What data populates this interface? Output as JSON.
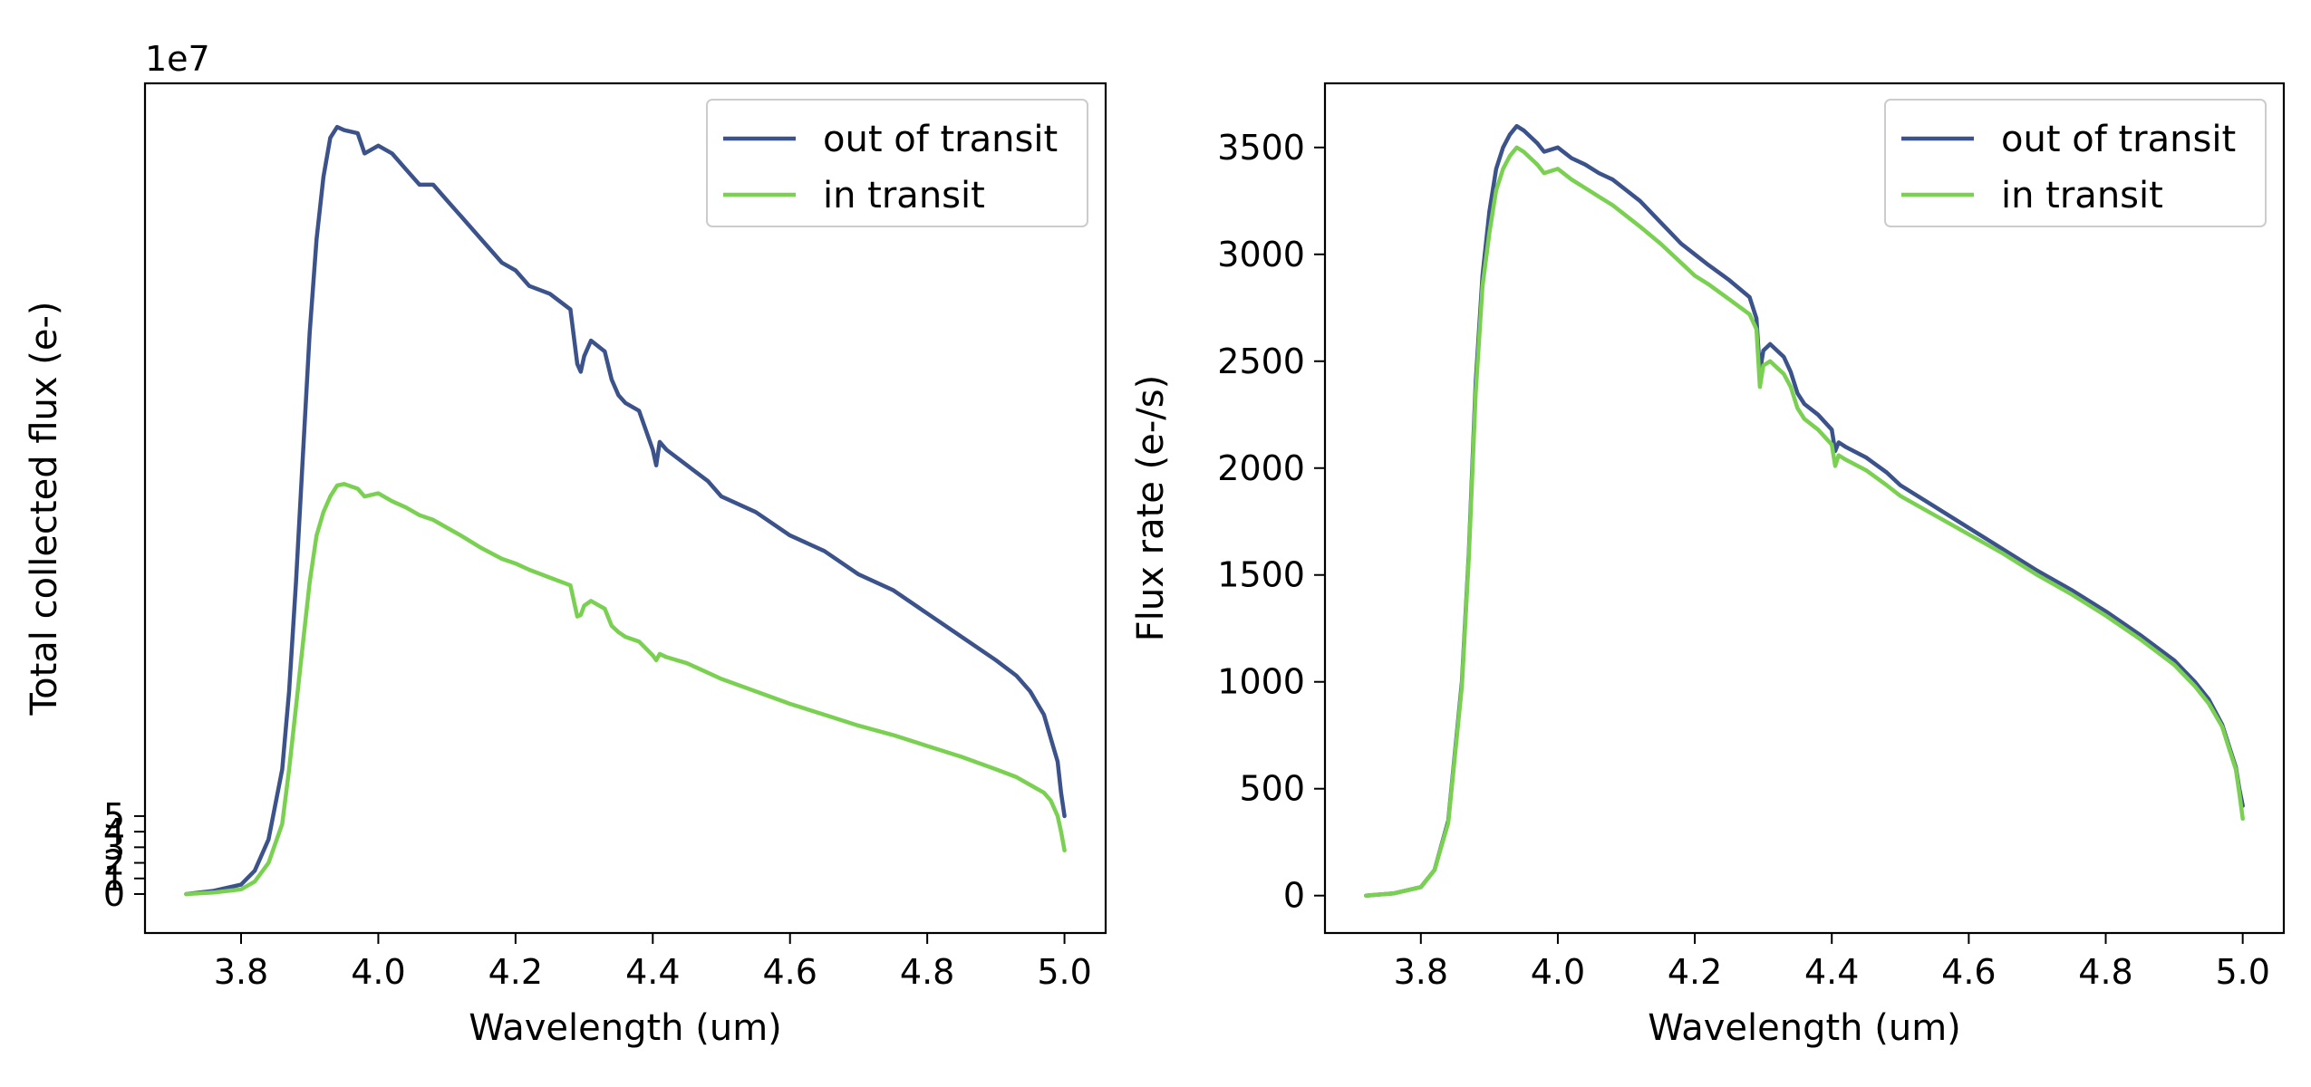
{
  "chart_data": [
    {
      "type": "line",
      "title": "",
      "xlabel": "Wavelength (um)",
      "ylabel": "Total collected flux (e-)",
      "y_offset_label": "1e7",
      "xlim": [
        3.66,
        5.06
      ],
      "ylim": [
        -2.5,
        52.0
      ],
      "y_scale": 10000000,
      "x_ticks": [
        3.8,
        4.0,
        4.2,
        4.4,
        4.6,
        4.8,
        5.0
      ],
      "x_tick_labels": [
        "3.8",
        "4.0",
        "4.2",
        "4.4",
        "4.6",
        "4.8",
        "5.0"
      ],
      "y_ticks": [
        0,
        1,
        2,
        3,
        4,
        5
      ],
      "y_tick_labels": [
        "0",
        "1",
        "2",
        "3",
        "4",
        "5"
      ],
      "legend_position": "top-right",
      "series": [
        {
          "name": "out of transit",
          "color": "#3b528b",
          "x": [
            3.72,
            3.76,
            3.8,
            3.82,
            3.84,
            3.86,
            3.87,
            3.88,
            3.89,
            3.9,
            3.91,
            3.92,
            3.93,
            3.94,
            3.95,
            3.97,
            3.98,
            4.0,
            4.02,
            4.04,
            4.06,
            4.08,
            4.1,
            4.12,
            4.15,
            4.18,
            4.2,
            4.22,
            4.25,
            4.28,
            4.29,
            4.295,
            4.3,
            4.31,
            4.33,
            4.34,
            4.35,
            4.36,
            4.38,
            4.4,
            4.405,
            4.41,
            4.42,
            4.45,
            4.48,
            4.5,
            4.55,
            4.6,
            4.65,
            4.7,
            4.75,
            4.8,
            4.85,
            4.9,
            4.93,
            4.95,
            4.97,
            4.98,
            4.99,
            4.995,
            5.0
          ],
          "y": [
            0.0,
            0.2,
            0.6,
            1.5,
            3.5,
            8.0,
            13.0,
            20.0,
            28.0,
            36.0,
            42.0,
            46.0,
            48.5,
            49.2,
            49.0,
            48.8,
            47.5,
            48.0,
            47.5,
            46.5,
            45.5,
            45.5,
            44.5,
            43.5,
            42.0,
            40.5,
            40.0,
            39.0,
            38.5,
            37.5,
            34.0,
            33.5,
            34.5,
            35.5,
            34.8,
            33.0,
            32.0,
            31.5,
            31.0,
            28.5,
            27.5,
            29.0,
            28.5,
            27.5,
            26.5,
            25.5,
            24.5,
            23.0,
            22.0,
            20.5,
            19.5,
            18.0,
            16.5,
            15.0,
            14.0,
            13.0,
            11.5,
            10.0,
            8.5,
            6.5,
            5.0
          ]
        },
        {
          "name": "in transit",
          "color": "#7ad151",
          "x": [
            3.72,
            3.76,
            3.8,
            3.82,
            3.84,
            3.86,
            3.87,
            3.88,
            3.89,
            3.9,
            3.91,
            3.92,
            3.93,
            3.94,
            3.95,
            3.97,
            3.98,
            4.0,
            4.02,
            4.04,
            4.06,
            4.08,
            4.1,
            4.12,
            4.15,
            4.18,
            4.2,
            4.22,
            4.25,
            4.28,
            4.29,
            4.295,
            4.3,
            4.31,
            4.33,
            4.34,
            4.35,
            4.36,
            4.38,
            4.4,
            4.405,
            4.41,
            4.42,
            4.45,
            4.48,
            4.5,
            4.55,
            4.6,
            4.65,
            4.7,
            4.75,
            4.8,
            4.85,
            4.9,
            4.93,
            4.95,
            4.97,
            4.98,
            4.99,
            4.995,
            5.0
          ],
          "y": [
            0.0,
            0.1,
            0.3,
            0.8,
            2.0,
            4.5,
            8.0,
            12.0,
            16.0,
            20.0,
            23.0,
            24.5,
            25.5,
            26.2,
            26.3,
            26.0,
            25.5,
            25.7,
            25.2,
            24.8,
            24.3,
            24.0,
            23.5,
            23.0,
            22.2,
            21.5,
            21.2,
            20.8,
            20.3,
            19.8,
            17.8,
            17.9,
            18.5,
            18.8,
            18.3,
            17.2,
            16.8,
            16.5,
            16.2,
            15.3,
            15.0,
            15.4,
            15.2,
            14.8,
            14.2,
            13.8,
            13.0,
            12.2,
            11.5,
            10.8,
            10.2,
            9.5,
            8.8,
            8.0,
            7.5,
            7.0,
            6.5,
            6.0,
            5.0,
            4.0,
            2.8
          ]
        }
      ]
    },
    {
      "type": "line",
      "title": "",
      "xlabel": "Wavelength (um)",
      "ylabel": "Flux rate (e-/s)",
      "xlim": [
        3.66,
        5.06
      ],
      "ylim": [
        -175,
        3800
      ],
      "y_scale": 1,
      "x_ticks": [
        3.8,
        4.0,
        4.2,
        4.4,
        4.6,
        4.8,
        5.0
      ],
      "x_tick_labels": [
        "3.8",
        "4.0",
        "4.2",
        "4.4",
        "4.6",
        "4.8",
        "5.0"
      ],
      "y_ticks": [
        0,
        500,
        1000,
        1500,
        2000,
        2500,
        3000,
        3500
      ],
      "y_tick_labels": [
        "0",
        "500",
        "1000",
        "1500",
        "2000",
        "2500",
        "3000",
        "3500"
      ],
      "legend_position": "top-right",
      "series": [
        {
          "name": "out of transit",
          "color": "#3b528b",
          "x": [
            3.72,
            3.76,
            3.8,
            3.82,
            3.84,
            3.86,
            3.87,
            3.88,
            3.89,
            3.9,
            3.91,
            3.92,
            3.93,
            3.94,
            3.95,
            3.97,
            3.98,
            4.0,
            4.02,
            4.04,
            4.06,
            4.08,
            4.1,
            4.12,
            4.15,
            4.18,
            4.2,
            4.22,
            4.25,
            4.28,
            4.29,
            4.295,
            4.3,
            4.31,
            4.33,
            4.34,
            4.35,
            4.36,
            4.38,
            4.4,
            4.405,
            4.41,
            4.42,
            4.45,
            4.48,
            4.5,
            4.55,
            4.6,
            4.65,
            4.7,
            4.75,
            4.8,
            4.85,
            4.9,
            4.93,
            4.95,
            4.97,
            4.98,
            4.99,
            4.995,
            5.0
          ],
          "y": [
            0,
            10,
            40,
            120,
            350,
            1000,
            1600,
            2400,
            2900,
            3200,
            3400,
            3500,
            3560,
            3600,
            3580,
            3520,
            3480,
            3500,
            3450,
            3420,
            3380,
            3350,
            3300,
            3250,
            3150,
            3050,
            3000,
            2950,
            2880,
            2800,
            2700,
            2450,
            2550,
            2580,
            2520,
            2450,
            2350,
            2300,
            2250,
            2180,
            2080,
            2120,
            2100,
            2050,
            1980,
            1920,
            1820,
            1720,
            1620,
            1520,
            1430,
            1330,
            1220,
            1100,
            1000,
            920,
            800,
            700,
            600,
            500,
            420
          ]
        },
        {
          "name": "in transit",
          "color": "#7ad151",
          "x": [
            3.72,
            3.76,
            3.8,
            3.82,
            3.84,
            3.86,
            3.87,
            3.88,
            3.89,
            3.9,
            3.91,
            3.92,
            3.93,
            3.94,
            3.95,
            3.97,
            3.98,
            4.0,
            4.02,
            4.04,
            4.06,
            4.08,
            4.1,
            4.12,
            4.15,
            4.18,
            4.2,
            4.22,
            4.25,
            4.28,
            4.29,
            4.295,
            4.3,
            4.31,
            4.33,
            4.34,
            4.35,
            4.36,
            4.38,
            4.4,
            4.405,
            4.41,
            4.42,
            4.45,
            4.48,
            4.5,
            4.55,
            4.6,
            4.65,
            4.7,
            4.75,
            4.8,
            4.85,
            4.9,
            4.93,
            4.95,
            4.97,
            4.98,
            4.99,
            4.995,
            5.0
          ],
          "y": [
            0,
            10,
            40,
            120,
            340,
            980,
            1580,
            2350,
            2850,
            3100,
            3300,
            3400,
            3460,
            3500,
            3480,
            3420,
            3380,
            3400,
            3350,
            3310,
            3270,
            3230,
            3180,
            3130,
            3050,
            2960,
            2900,
            2860,
            2790,
            2720,
            2650,
            2380,
            2480,
            2500,
            2440,
            2380,
            2280,
            2230,
            2180,
            2110,
            2010,
            2060,
            2040,
            1990,
            1920,
            1870,
            1780,
            1690,
            1600,
            1500,
            1410,
            1310,
            1200,
            1080,
            980,
            900,
            790,
            690,
            590,
            480,
            360
          ]
        }
      ]
    }
  ]
}
